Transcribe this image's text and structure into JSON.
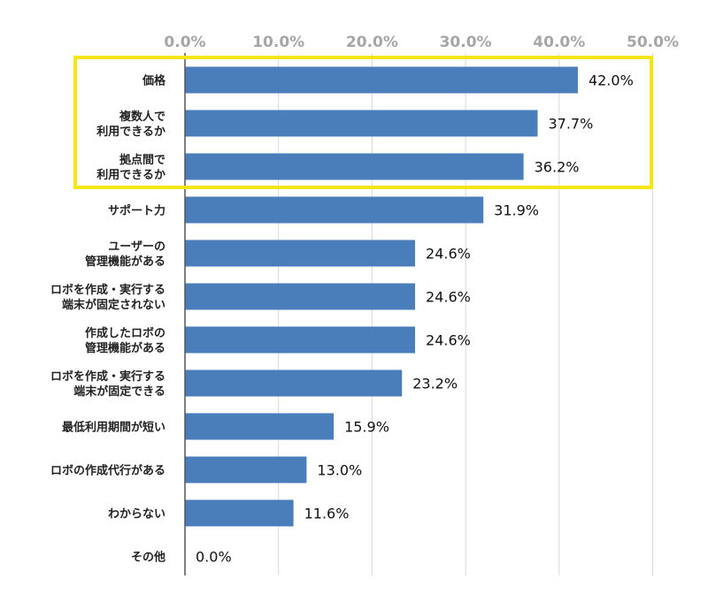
{
  "chart_data": {
    "type": "bar",
    "orientation": "horizontal",
    "x_ticks": [
      "0.0%",
      "10.0%",
      "20.0%",
      "30.0%",
      "40.0%",
      "50.0%"
    ],
    "xlim": [
      0,
      50
    ],
    "grid": true,
    "colors": {
      "bar": "#4a7ebb",
      "highlight": "#f5e60f",
      "grid": "#d9d9d9",
      "axis": "#555555"
    },
    "categories": [
      [
        "価格"
      ],
      [
        "複数人で",
        "利用できるか"
      ],
      [
        "拠点間で",
        "利用できるか"
      ],
      [
        "サポート力"
      ],
      [
        "ユーザーの",
        "管理機能がある"
      ],
      [
        "ロボを作成・実行する",
        "端末が固定されない"
      ],
      [
        "作成したロボの",
        "管理機能がある"
      ],
      [
        "ロボを作成・実行する",
        "端末が固定できる"
      ],
      [
        "最低利用期間が短い"
      ],
      [
        "ロボの作成代行がある"
      ],
      [
        "わからない"
      ],
      [
        "その他"
      ]
    ],
    "values": [
      42.0,
      37.7,
      36.2,
      31.9,
      24.6,
      24.6,
      24.6,
      23.2,
      15.9,
      13.0,
      11.6,
      0.0
    ],
    "value_labels": [
      "42.0%",
      "37.7%",
      "36.2%",
      "31.9%",
      "24.6%",
      "24.6%",
      "24.6%",
      "23.2%",
      "15.9%",
      "13.0%",
      "11.6%",
      "0.0%"
    ],
    "highlighted_categories": [
      0,
      1,
      2
    ]
  }
}
